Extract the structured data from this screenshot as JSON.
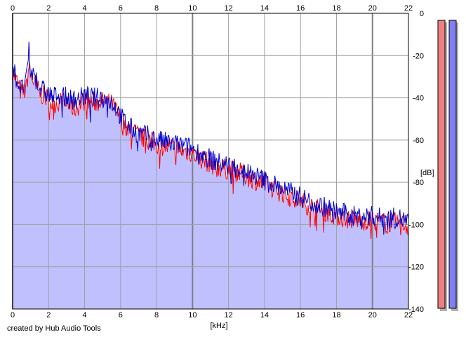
{
  "app": {
    "credit": "created by Hub Audio Tools"
  },
  "colors": {
    "plot_background": "#ffffff",
    "fill": "#c0c0ff",
    "channel_left": "#ff0000",
    "channel_right": "#0000cc",
    "grid": "#a0a0a0",
    "major_grid": "#808080",
    "meter_left": "#f08080",
    "meter_right": "#8080f0"
  },
  "chart_data": {
    "type": "line",
    "title": "",
    "xlabel": "[kHz]",
    "ylabel": "[dB]",
    "xlim": [
      0,
      22
    ],
    "ylim": [
      -140,
      0
    ],
    "x_ticks": [
      "0",
      "2",
      "4",
      "6",
      "8",
      "10",
      "12",
      "14",
      "16",
      "18",
      "20",
      "22"
    ],
    "y_ticks": [
      "0",
      "-20",
      "-40",
      "-60",
      "-80",
      "-100",
      "-120",
      "-140"
    ],
    "grid": true,
    "legend": "none",
    "filled_area_under_curve": true,
    "series": [
      {
        "channel": "left",
        "color": "#ff0000",
        "x": [
          0,
          0.25,
          0.5,
          0.75,
          0.9,
          1,
          1.25,
          1.5,
          1.75,
          2,
          2.25,
          2.5,
          2.75,
          3,
          3.5,
          4,
          4.5,
          5,
          5.5,
          5.8,
          6,
          6.5,
          7,
          7.5,
          8,
          8.5,
          9,
          9.5,
          10,
          10.5,
          11,
          11.5,
          12,
          12.5,
          13,
          13.5,
          14,
          14.5,
          15,
          15.5,
          16,
          16.5,
          17,
          17.5,
          18,
          18.5,
          19,
          19.5,
          20,
          20.5,
          21,
          21.5,
          22
        ],
        "values": [
          -27,
          -33,
          -38,
          -36,
          -25,
          -30,
          -33,
          -38,
          -39,
          -41,
          -43,
          -42,
          -42,
          -43,
          -45,
          -41,
          -42,
          -42,
          -43,
          -47,
          -50,
          -55,
          -58,
          -60,
          -62,
          -63,
          -64,
          -65,
          -66,
          -69,
          -71,
          -73,
          -74,
          -75,
          -77,
          -79,
          -81,
          -83,
          -85,
          -87,
          -89,
          -91,
          -93,
          -94,
          -96,
          -97,
          -98,
          -98,
          -98,
          -99,
          -99,
          -99,
          -101
        ]
      },
      {
        "channel": "right",
        "color": "#0000cc",
        "x": [
          0,
          0.25,
          0.5,
          0.75,
          0.9,
          1,
          1.25,
          1.5,
          1.75,
          2,
          2.25,
          2.5,
          2.75,
          3,
          3.5,
          4,
          4.5,
          5,
          5.5,
          5.8,
          6,
          6.5,
          7,
          7.5,
          8,
          8.5,
          9,
          9.5,
          10,
          10.5,
          11,
          11.5,
          12,
          12.5,
          13,
          13.5,
          14,
          14.5,
          15,
          15.5,
          16,
          16.5,
          17,
          17.5,
          18,
          18.5,
          19,
          19.5,
          20,
          20.5,
          21,
          21.5,
          22
        ],
        "values": [
          -25,
          -32,
          -36,
          -33,
          -18,
          -28,
          -30,
          -35,
          -37,
          -38,
          -40,
          -38,
          -39,
          -40,
          -41,
          -39,
          -40,
          -40,
          -42,
          -45,
          -49,
          -54,
          -57,
          -58,
          -60,
          -61,
          -62,
          -63,
          -64,
          -67,
          -69,
          -71,
          -72,
          -73,
          -75,
          -77,
          -79,
          -81,
          -83,
          -85,
          -87,
          -89,
          -91,
          -92,
          -94,
          -95,
          -96,
          -96,
          -96,
          -97,
          -97,
          -97,
          -99
        ]
      }
    ],
    "level_meters": [
      {
        "channel": "left",
        "color": "#f08080"
      },
      {
        "channel": "right",
        "color": "#8080f0"
      }
    ]
  }
}
